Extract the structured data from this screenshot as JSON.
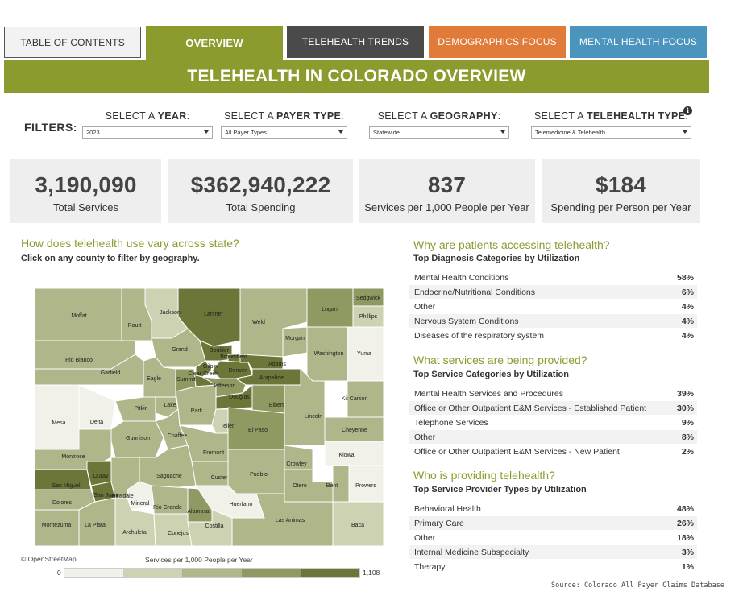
{
  "tabs": [
    {
      "label": "TABLE OF CONTENTS"
    },
    {
      "label": "OVERVIEW"
    },
    {
      "label": "TELEHEALTH TRENDS"
    },
    {
      "label": "DEMOGRAPHICS FOCUS"
    },
    {
      "label": "MENTAL HEALTH FOCUS"
    }
  ],
  "title": "TELEHEALTH IN COLORADO OVERVIEW",
  "filters": {
    "label": "FILTERS:",
    "year": {
      "prefix": "SELECT A ",
      "bold": "YEAR",
      "suffix": ":",
      "value": "2023"
    },
    "payer": {
      "prefix": "SELECT A ",
      "bold": "PAYER TYPE",
      "suffix": ":",
      "value": "All Payer Types"
    },
    "geography": {
      "prefix": "SELECT A ",
      "bold": "GEOGRAPHY",
      "suffix": ":",
      "value": "Statewide"
    },
    "telehealth": {
      "prefix": "SELECT A ",
      "bold": "TELEHEALTH TYPE",
      "suffix": ":",
      "value": "Telemedicine & Telehealth"
    },
    "info_icon": "i"
  },
  "kpis": [
    {
      "value": "3,190,090",
      "label": "Total Services"
    },
    {
      "value": "$362,940,222",
      "label": "Total Spending"
    },
    {
      "value": "837",
      "label": "Services per 1,000 People per Year"
    },
    {
      "value": "$184",
      "label": "Spending per Person per Year"
    }
  ],
  "map_section": {
    "title": "How does telehealth use vary across state?",
    "subtitle": "Click on any county to filter by geography.",
    "attribution": "© OpenStreetMap",
    "legend_title": "Services per 1,000 People per Year",
    "legend_min": "0",
    "legend_max": "1,108",
    "legend_colors": [
      "#f1f1ea",
      "#ccd2b2",
      "#aeb68a",
      "#8f9a62",
      "#6b7638"
    ]
  },
  "counties": {
    "moffat": "Moffat",
    "routt": "Routt",
    "jackson": "Jackson",
    "larimer": "Larimer",
    "weld": "Weld",
    "logan": "Logan",
    "sedgwick": "Sedgwick",
    "phillips": "Phillips",
    "morgan": "Morgan",
    "yuma": "Yuma",
    "washington": "Washington",
    "rio_blanco": "Rio Blanco",
    "grand": "Grand",
    "boulder": "Boulder",
    "broomfield": "Broomfield",
    "garfield": "Garfield",
    "eagle": "Eagle",
    "summit": "Summit",
    "gilpin": "Gilpin",
    "clear_creek": "Clear Creek",
    "denver": "Denver",
    "adams": "Adams",
    "arapahoe": "Arapahoe",
    "jefferson": "Jefferson",
    "douglas": "Douglas",
    "elbert": "Elbert",
    "kit_carson": "Kit Carson",
    "mesa": "Mesa",
    "delta": "Delta",
    "pitkin": "Pitkin",
    "lake": "Lake",
    "park": "Park",
    "teller": "Teller",
    "el_paso": "El Paso",
    "lincoln": "Lincoln",
    "cheyenne": "Cheyenne",
    "gunnison": "Gunnison",
    "chaffee": "Chaffee",
    "fremont": "Fremont",
    "kiowa": "Kiowa",
    "montrose": "Montrose",
    "saguache": "Saguache",
    "custer": "Custer",
    "pueblo": "Pueblo",
    "crowley": "Crowley",
    "otero": "Otero",
    "bent": "Bent",
    "prowers": "Prowers",
    "san_miguel": "San Miguel",
    "ouray": "Ouray",
    "san_juan": "San Juan",
    "hinsdale": "Hinsdale",
    "mineral": "Mineral",
    "dolores": "Dolores",
    "rio_grande": "Rio Grande",
    "alamosa": "Alamosa",
    "huerfano": "Huerfano",
    "montezuma": "Montezuma",
    "la_plata": "La Plata",
    "archuleta": "Archuleta",
    "conejos": "Conejos",
    "costilla": "Costilla",
    "las_animas": "Las Animas",
    "baca": "Baca"
  },
  "diagnosis": {
    "title": "Why are patients accessing telehealth?",
    "subtitle": "Top Diagnosis Categories by Utilization",
    "rows": [
      {
        "label": "Mental Health Conditions",
        "pct": "58%"
      },
      {
        "label": "Endocrine/Nutritional Conditions",
        "pct": "6%"
      },
      {
        "label": "Other",
        "pct": "4%"
      },
      {
        "label": "Nervous System Conditions",
        "pct": "4%"
      },
      {
        "label": "Diseases of the respiratory system",
        "pct": "4%"
      }
    ]
  },
  "services": {
    "title": "What services are being provided?",
    "subtitle": "Top Service Categories by Utilization",
    "rows": [
      {
        "label": "Mental Health Services and Procedures",
        "pct": "39%"
      },
      {
        "label": "Office or Other Outpatient E&M Services - Established Patient",
        "pct": "30%"
      },
      {
        "label": "Telephone Services",
        "pct": "9%"
      },
      {
        "label": "Other",
        "pct": "8%"
      },
      {
        "label": "Office or Other Outpatient E&M Services - New Patient",
        "pct": "2%"
      }
    ]
  },
  "providers": {
    "title": "Who is providing telehealth?",
    "subtitle": "Top Service Provider Types by Utilization",
    "rows": [
      {
        "label": "Behavioral Health",
        "pct": "48%"
      },
      {
        "label": "Primary Care",
        "pct": "26%"
      },
      {
        "label": "Other",
        "pct": "18%"
      },
      {
        "label": "Internal Medicine Subspecialty",
        "pct": "3%"
      },
      {
        "label": "Therapy",
        "pct": "1%"
      }
    ]
  },
  "source": "Source: Colorado All Payer Claims Database"
}
